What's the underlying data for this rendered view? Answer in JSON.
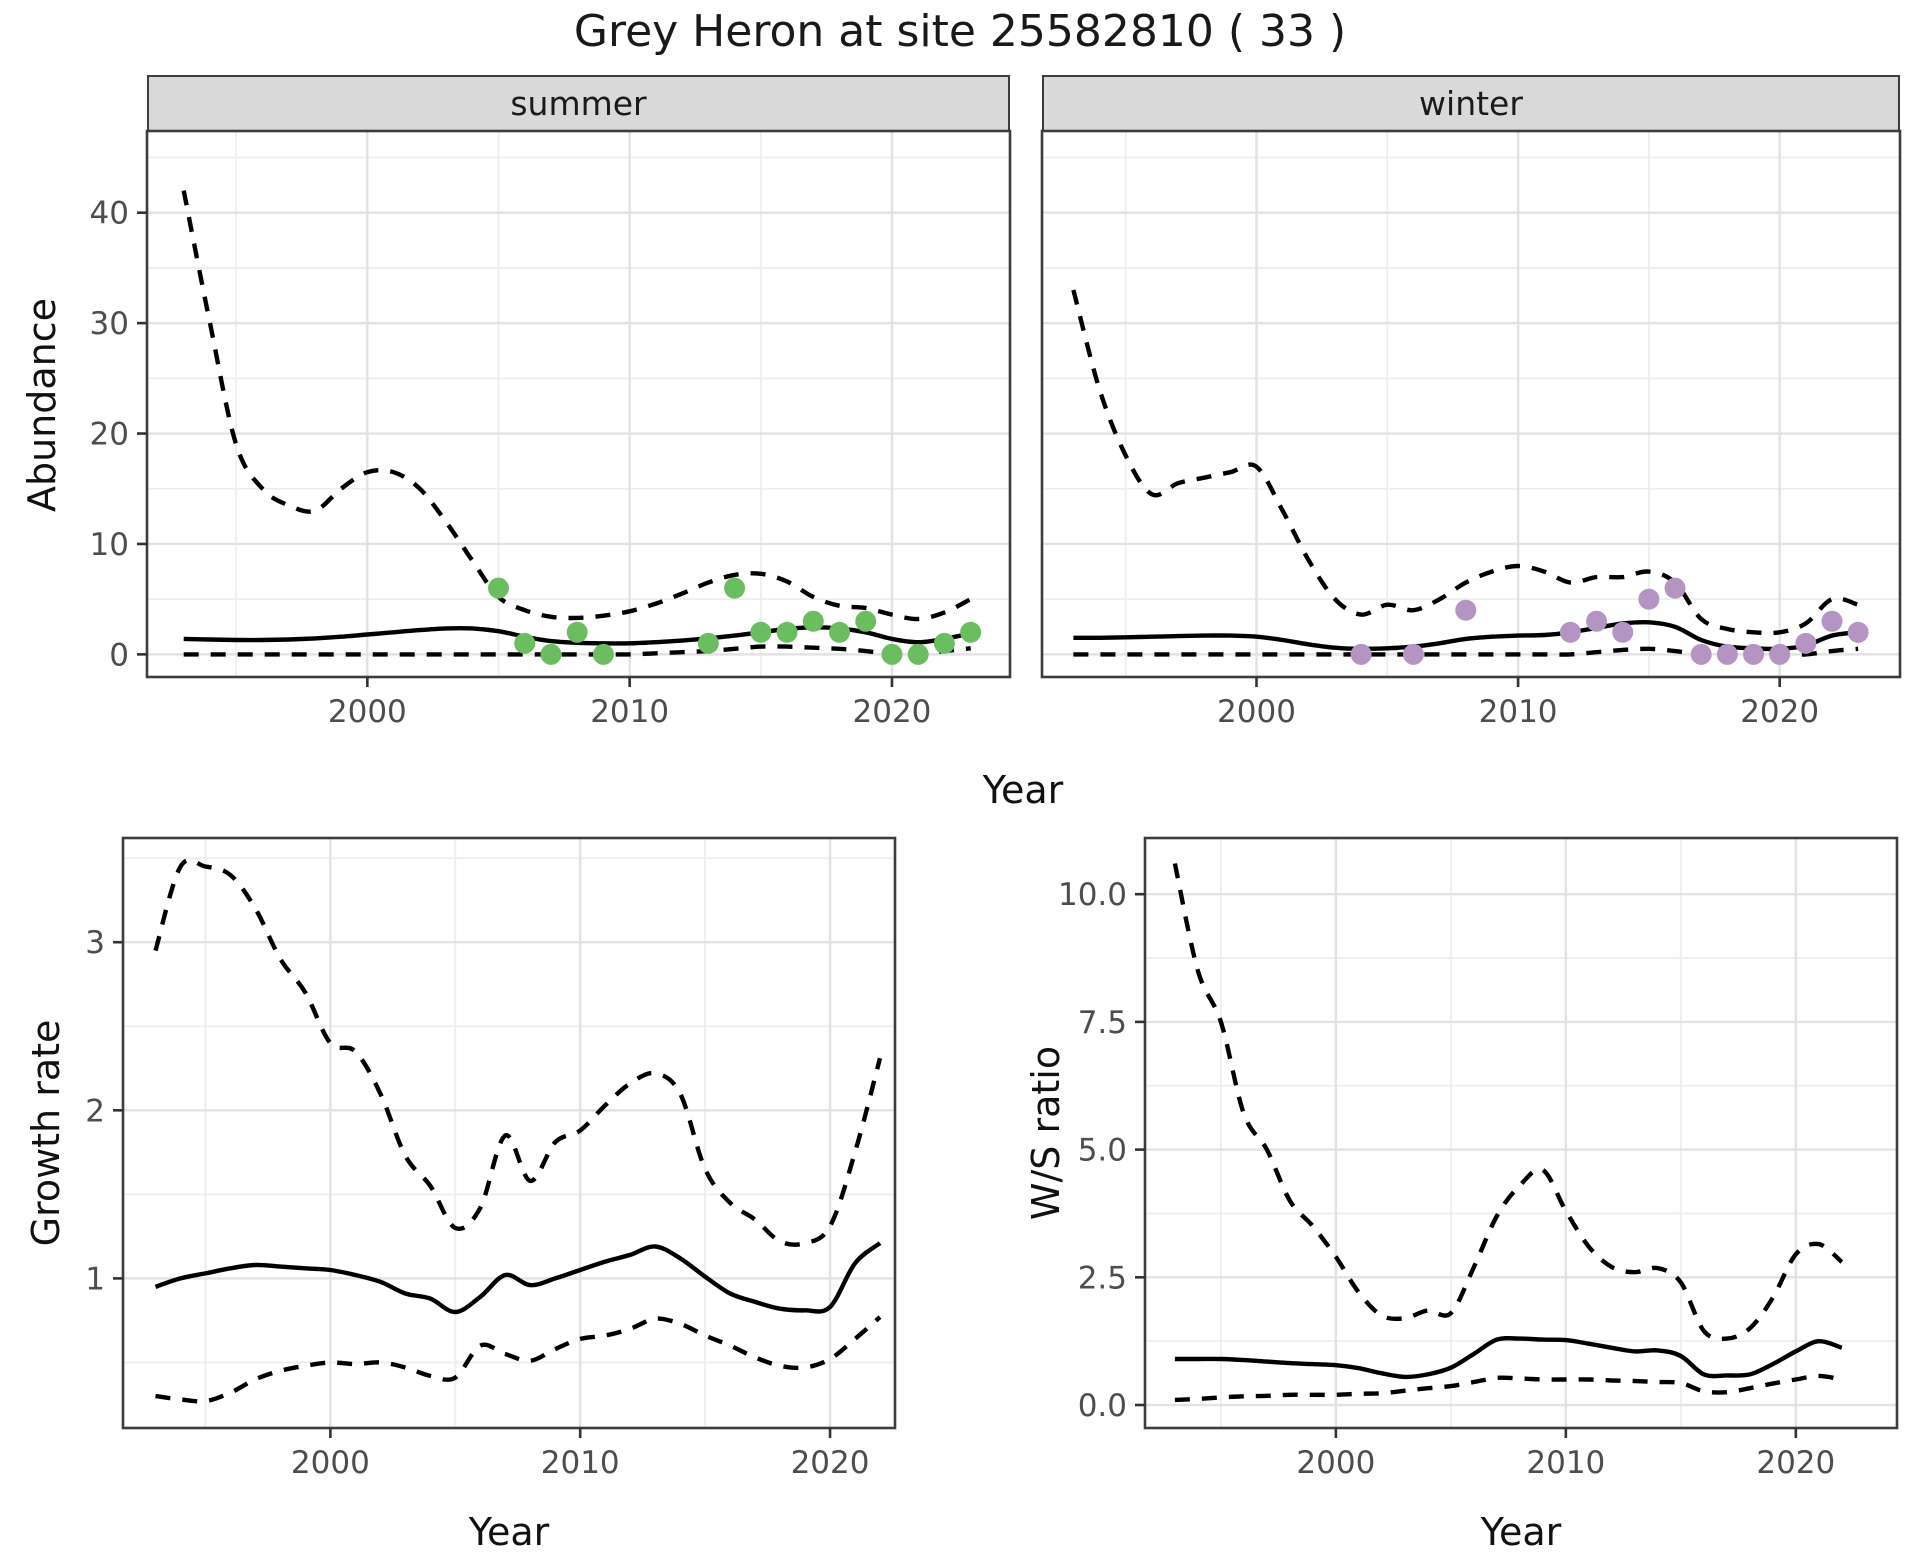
{
  "title": "Grey Heron at site 25582810 ( 33 )",
  "facets": {
    "summer_label": "summer",
    "winter_label": "winter"
  },
  "axes": {
    "abundance_label": "Abundance",
    "growth_label": "Growth rate",
    "ws_label": "W/S ratio",
    "top_x_label": "Year",
    "bottom_left_x_label": "Year",
    "bottom_right_x_label": "Year"
  },
  "colors": {
    "summer_points": "#6abe5f",
    "winter_points": "#b593c2",
    "line": "#000000",
    "strip_bg": "#d9d9d9",
    "panel_border": "#3d3d3d",
    "grid_major": "#e2e2e2",
    "grid_minor": "#ededed",
    "tick_label": "#4d4d4d",
    "tick_mark": "#333333",
    "title_text": "#191919"
  },
  "chart_data": [
    {
      "id": "summer",
      "type": "line",
      "title": "summer",
      "xlabel": "Year",
      "ylabel": "Abundance",
      "xlim": [
        1991.6,
        2024.5
      ],
      "ylim": [
        -2.05,
        47.4
      ],
      "xticks": [
        2000,
        2010,
        2020
      ],
      "xtick_labels": [
        "2000",
        "2010",
        "2020"
      ],
      "xminor": [
        1995,
        2005,
        2015
      ],
      "yticks": [
        0,
        10,
        20,
        30,
        40
      ],
      "ytick_labels": [
        "0",
        "10",
        "20",
        "30",
        "40"
      ],
      "yminor": [
        5,
        15,
        25,
        35,
        45
      ],
      "years": [
        1993,
        1994,
        1995,
        1996,
        1997,
        1998,
        1999,
        2000,
        2001,
        2002,
        2003,
        2004,
        2005,
        2006,
        2007,
        2008,
        2009,
        2010,
        2011,
        2012,
        2013,
        2014,
        2015,
        2016,
        2017,
        2018,
        2019,
        2020,
        2021,
        2022,
        2023
      ],
      "fit": [
        1.4,
        1.35,
        1.3,
        1.3,
        1.35,
        1.45,
        1.6,
        1.8,
        2.0,
        2.2,
        2.35,
        2.35,
        2.1,
        1.6,
        1.2,
        1.05,
        1.0,
        1.0,
        1.1,
        1.25,
        1.45,
        1.7,
        2.0,
        2.3,
        2.45,
        2.35,
        2.0,
        1.4,
        1.1,
        1.4,
        1.9
      ],
      "upper": [
        42,
        30,
        19,
        15,
        13.5,
        13,
        15,
        16.5,
        16.5,
        15,
        12,
        8.5,
        5.2,
        4.0,
        3.4,
        3.3,
        3.5,
        3.9,
        4.6,
        5.5,
        6.5,
        7.2,
        7.3,
        6.6,
        5.2,
        4.4,
        4.2,
        3.6,
        3.2,
        3.8,
        5.0
      ],
      "lower": [
        0,
        0,
        0,
        0,
        0,
        0,
        0,
        0,
        0,
        0,
        0,
        0,
        0,
        0,
        0,
        0,
        0,
        0,
        0.1,
        0.2,
        0.3,
        0.5,
        0.7,
        0.7,
        0.6,
        0.5,
        0.3,
        0.05,
        0.05,
        0.3,
        0.55
      ],
      "points_x": [
        2005,
        2006,
        2007,
        2008,
        2009,
        2013,
        2014,
        2015,
        2016,
        2017,
        2018,
        2019,
        2020,
        2021,
        2022,
        2023
      ],
      "points_y": [
        6,
        1,
        0,
        2,
        0,
        1,
        6,
        2,
        2,
        3,
        2,
        3,
        0,
        0,
        1,
        2
      ],
      "point_color": "#6abe5f"
    },
    {
      "id": "winter",
      "type": "line",
      "title": "winter",
      "xlabel": "Year",
      "ylabel": "Abundance",
      "xlim": [
        1991.8,
        2024.6
      ],
      "ylim": [
        -2.05,
        47.4
      ],
      "xticks": [
        2000,
        2010,
        2020
      ],
      "xtick_labels": [
        "2000",
        "2010",
        "2020"
      ],
      "xminor": [
        1995,
        2005,
        2015
      ],
      "yticks": [
        0,
        10,
        20,
        30,
        40
      ],
      "ytick_labels": [],
      "yminor": [
        5,
        15,
        25,
        35,
        45
      ],
      "years": [
        1993,
        1994,
        1995,
        1996,
        1997,
        1998,
        1999,
        2000,
        2001,
        2002,
        2003,
        2004,
        2005,
        2006,
        2007,
        2008,
        2009,
        2010,
        2011,
        2012,
        2013,
        2014,
        2015,
        2016,
        2017,
        2018,
        2019,
        2020,
        2021,
        2022,
        2023
      ],
      "fit": [
        1.5,
        1.5,
        1.55,
        1.6,
        1.65,
        1.7,
        1.7,
        1.6,
        1.3,
        0.9,
        0.6,
        0.5,
        0.55,
        0.7,
        1.0,
        1.4,
        1.6,
        1.7,
        1.75,
        2.0,
        2.4,
        2.8,
        2.9,
        2.5,
        1.3,
        0.7,
        0.55,
        0.5,
        0.8,
        1.7,
        2.0
      ],
      "upper": [
        33,
        24,
        18,
        14.5,
        15.5,
        16,
        16.5,
        17,
        13,
        8.5,
        5,
        3.6,
        4.5,
        4.0,
        5.0,
        6.5,
        7.5,
        8.0,
        7.5,
        6.5,
        7.0,
        7.0,
        7.5,
        6.5,
        3.2,
        2.3,
        2.0,
        2.0,
        2.8,
        5.0,
        4.5
      ],
      "lower": [
        0,
        0,
        0,
        0,
        0,
        0,
        0,
        0,
        0,
        0,
        0,
        0,
        0,
        0,
        0,
        0,
        0,
        0,
        0,
        0,
        0.2,
        0.4,
        0.5,
        0.3,
        0,
        0,
        0,
        0,
        0,
        0.3,
        0.5
      ],
      "points_x": [
        2004,
        2006,
        2008,
        2012,
        2013,
        2014,
        2015,
        2016,
        2017,
        2018,
        2019,
        2020,
        2021,
        2022,
        2023
      ],
      "points_y": [
        0,
        0,
        4,
        2,
        3,
        2,
        5,
        6,
        0,
        0,
        0,
        0,
        1,
        3,
        2
      ],
      "point_color": "#b593c2"
    },
    {
      "id": "growth",
      "type": "line",
      "title": "Growth rate",
      "xlabel": "Year",
      "ylabel": "Growth rate",
      "xlim": [
        1991.7,
        2022.6
      ],
      "ylim": [
        0.11,
        3.62
      ],
      "xticks": [
        2000,
        2010,
        2020
      ],
      "xtick_labels": [
        "2000",
        "2010",
        "2020"
      ],
      "xminor": [
        1995,
        2005,
        2015
      ],
      "yticks": [
        1,
        2,
        3
      ],
      "ytick_labels": [
        "1",
        "2",
        "3"
      ],
      "yminor": [
        0.5,
        1.5,
        2.5,
        3.5
      ],
      "years": [
        1993,
        1994,
        1995,
        1996,
        1997,
        1998,
        1999,
        2000,
        2001,
        2002,
        2003,
        2004,
        2005,
        2006,
        2007,
        2008,
        2009,
        2010,
        2011,
        2012,
        2013,
        2014,
        2015,
        2016,
        2017,
        2018,
        2019,
        2020,
        2021,
        2022
      ],
      "fit": [
        0.95,
        1.0,
        1.03,
        1.06,
        1.08,
        1.07,
        1.06,
        1.05,
        1.02,
        0.98,
        0.91,
        0.88,
        0.8,
        0.89,
        1.02,
        0.96,
        1.0,
        1.05,
        1.1,
        1.14,
        1.19,
        1.12,
        1.01,
        0.91,
        0.86,
        0.82,
        0.81,
        0.83,
        1.09,
        1.21
      ],
      "upper": [
        2.95,
        3.45,
        3.45,
        3.4,
        3.2,
        2.9,
        2.7,
        2.4,
        2.35,
        2.1,
        1.73,
        1.55,
        1.3,
        1.42,
        1.85,
        1.58,
        1.81,
        1.88,
        2.03,
        2.16,
        2.22,
        2.1,
        1.65,
        1.45,
        1.35,
        1.22,
        1.21,
        1.31,
        1.75,
        2.31
      ],
      "lower": [
        0.3,
        0.28,
        0.27,
        0.32,
        0.4,
        0.45,
        0.48,
        0.5,
        0.49,
        0.5,
        0.47,
        0.42,
        0.41,
        0.6,
        0.55,
        0.51,
        0.58,
        0.64,
        0.66,
        0.7,
        0.76,
        0.73,
        0.66,
        0.6,
        0.53,
        0.48,
        0.47,
        0.52,
        0.64,
        0.77
      ],
      "points_x": [],
      "points_y": [],
      "point_color": "#000000"
    },
    {
      "id": "ws",
      "type": "line",
      "title": "W/S ratio",
      "xlabel": "Year",
      "ylabel": "W/S ratio",
      "xlim": [
        1991.7,
        2024.4
      ],
      "ylim": [
        -0.45,
        11.1
      ],
      "xticks": [
        2000,
        2010,
        2020
      ],
      "xtick_labels": [
        "2000",
        "2010",
        "2020"
      ],
      "xminor": [
        1995,
        2005,
        2015
      ],
      "yticks": [
        0,
        2.5,
        5,
        7.5,
        10
      ],
      "ytick_labels": [
        "0.0",
        "2.5",
        "5.0",
        "7.5",
        "10.0"
      ],
      "yminor": [
        1.25,
        3.75,
        6.25,
        8.75
      ],
      "years": [
        1993,
        1994,
        1995,
        1996,
        1997,
        1998,
        1999,
        2000,
        2001,
        2002,
        2003,
        2004,
        2005,
        2006,
        2007,
        2008,
        2009,
        2010,
        2011,
        2012,
        2013,
        2014,
        2015,
        2016,
        2017,
        2018,
        2019,
        2020,
        2021,
        2022
      ],
      "fit": [
        0.9,
        0.9,
        0.9,
        0.88,
        0.85,
        0.82,
        0.8,
        0.78,
        0.72,
        0.62,
        0.55,
        0.6,
        0.73,
        1.0,
        1.28,
        1.3,
        1.28,
        1.27,
        1.2,
        1.12,
        1.05,
        1.07,
        0.96,
        0.6,
        0.58,
        0.6,
        0.8,
        1.05,
        1.25,
        1.12
      ],
      "upper": [
        10.6,
        8.5,
        7.5,
        5.7,
        5.0,
        4.0,
        3.5,
        2.9,
        2.2,
        1.75,
        1.7,
        1.85,
        1.8,
        2.7,
        3.7,
        4.3,
        4.6,
        3.8,
        3.1,
        2.7,
        2.6,
        2.68,
        2.4,
        1.45,
        1.3,
        1.5,
        2.1,
        2.95,
        3.15,
        2.8
      ],
      "lower": [
        0.1,
        0.12,
        0.15,
        0.17,
        0.18,
        0.2,
        0.2,
        0.2,
        0.22,
        0.23,
        0.28,
        0.33,
        0.37,
        0.45,
        0.53,
        0.52,
        0.5,
        0.5,
        0.5,
        0.48,
        0.47,
        0.45,
        0.43,
        0.27,
        0.25,
        0.33,
        0.42,
        0.5,
        0.57,
        0.5
      ],
      "points_x": [],
      "points_y": [],
      "point_color": "#000000"
    }
  ]
}
